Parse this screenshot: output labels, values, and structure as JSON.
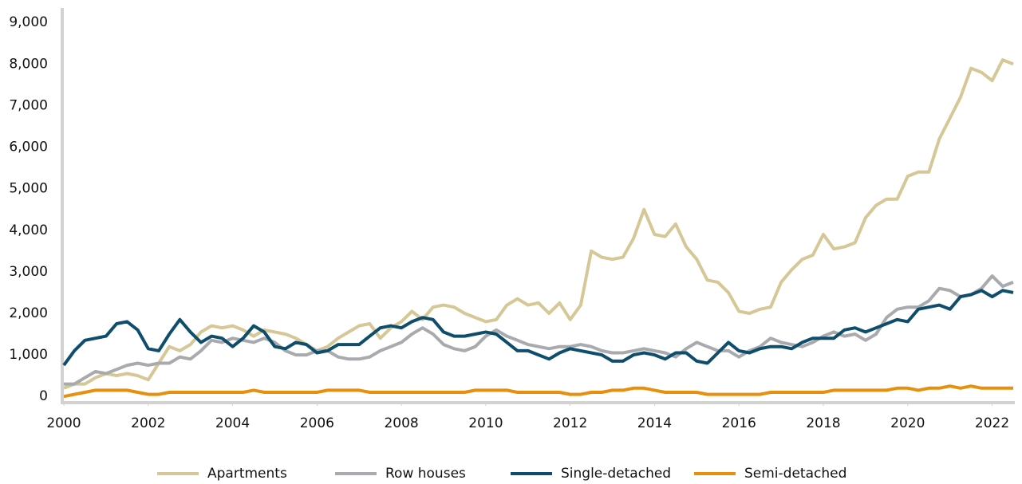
{
  "chart_data": {
    "type": "line",
    "x": [
      2000,
      2000.25,
      2000.5,
      2000.75,
      2001,
      2001.25,
      2001.5,
      2001.75,
      2002,
      2002.25,
      2002.5,
      2002.75,
      2003,
      2003.25,
      2003.5,
      2003.75,
      2004,
      2004.25,
      2004.5,
      2004.75,
      2005,
      2005.25,
      2005.5,
      2005.75,
      2006,
      2006.25,
      2006.5,
      2006.75,
      2007,
      2007.25,
      2007.5,
      2007.75,
      2008,
      2008.25,
      2008.5,
      2008.75,
      2009,
      2009.25,
      2009.5,
      2009.75,
      2010,
      2010.25,
      2010.5,
      2010.75,
      2011,
      2011.25,
      2011.5,
      2011.75,
      2012,
      2012.25,
      2012.5,
      2012.75,
      2013,
      2013.25,
      2013.5,
      2013.75,
      2014,
      2014.25,
      2014.5,
      2014.75,
      2015,
      2015.25,
      2015.5,
      2015.75,
      2016,
      2016.25,
      2016.5,
      2016.75,
      2017,
      2017.25,
      2017.5,
      2017.75,
      2018,
      2018.25,
      2018.5,
      2018.75,
      2019,
      2019.25,
      2019.5,
      2019.75,
      2020,
      2020.25,
      2020.5,
      2020.75,
      2021,
      2021.25,
      2021.5,
      2021.75,
      2022,
      2022.25,
      2022.5
    ],
    "series": [
      {
        "name": "Apartments",
        "color": "#d6c796",
        "values": [
          200,
          300,
          300,
          450,
          550,
          500,
          550,
          500,
          400,
          800,
          1200,
          1100,
          1250,
          1550,
          1700,
          1650,
          1700,
          1600,
          1450,
          1600,
          1550,
          1500,
          1400,
          1250,
          1100,
          1200,
          1400,
          1550,
          1700,
          1750,
          1400,
          1650,
          1800,
          2050,
          1850,
          2150,
          2200,
          2150,
          2000,
          1900,
          1800,
          1850,
          2200,
          2350,
          2200,
          2250,
          2000,
          2250,
          1850,
          2200,
          3500,
          3350,
          3300,
          3350,
          3800,
          4500,
          3900,
          3850,
          4150,
          3600,
          3300,
          2800,
          2750,
          2500,
          2050,
          2000,
          2100,
          2150,
          2750,
          3050,
          3300,
          3400,
          3900,
          3550,
          3600,
          3700,
          4300,
          4600,
          4750,
          4750,
          5300,
          5400,
          5400,
          6200,
          6700,
          7200,
          7900,
          7800,
          7600,
          8100,
          8000
        ]
      },
      {
        "name": "Row houses",
        "color": "#a9aaae",
        "values": [
          300,
          300,
          450,
          600,
          550,
          650,
          750,
          800,
          750,
          800,
          800,
          950,
          900,
          1100,
          1350,
          1300,
          1400,
          1350,
          1300,
          1400,
          1300,
          1100,
          1000,
          1000,
          1100,
          1100,
          950,
          900,
          900,
          950,
          1100,
          1200,
          1300,
          1500,
          1650,
          1500,
          1250,
          1150,
          1100,
          1200,
          1450,
          1600,
          1450,
          1350,
          1250,
          1200,
          1150,
          1200,
          1200,
          1250,
          1200,
          1100,
          1050,
          1050,
          1100,
          1150,
          1100,
          1050,
          950,
          1150,
          1300,
          1200,
          1100,
          1100,
          950,
          1100,
          1200,
          1400,
          1300,
          1250,
          1200,
          1300,
          1450,
          1550,
          1450,
          1500,
          1350,
          1500,
          1900,
          2100,
          2150,
          2150,
          2300,
          2600,
          2550,
          2400,
          2450,
          2600,
          2900,
          2650,
          2750
        ]
      },
      {
        "name": "Single-detached",
        "color": "#0e4d6b",
        "values": [
          750,
          1100,
          1350,
          1400,
          1450,
          1750,
          1800,
          1600,
          1150,
          1100,
          1500,
          1850,
          1550,
          1300,
          1450,
          1400,
          1200,
          1400,
          1700,
          1550,
          1200,
          1150,
          1300,
          1250,
          1050,
          1100,
          1250,
          1250,
          1250,
          1450,
          1650,
          1700,
          1650,
          1800,
          1900,
          1850,
          1550,
          1450,
          1450,
          1500,
          1550,
          1500,
          1300,
          1100,
          1100,
          1000,
          900,
          1050,
          1150,
          1100,
          1050,
          1000,
          850,
          850,
          1000,
          1050,
          1000,
          900,
          1050,
          1050,
          850,
          800,
          1050,
          1300,
          1100,
          1050,
          1150,
          1200,
          1200,
          1150,
          1300,
          1400,
          1400,
          1400,
          1600,
          1650,
          1550,
          1650,
          1750,
          1850,
          1800,
          2100,
          2150,
          2200,
          2100,
          2400,
          2450,
          2550,
          2400,
          2550,
          2500
        ]
      },
      {
        "name": "Semi-detached",
        "color": "#e8900e",
        "values": [
          0,
          50,
          100,
          150,
          150,
          150,
          150,
          100,
          50,
          50,
          100,
          100,
          100,
          100,
          100,
          100,
          100,
          100,
          150,
          100,
          100,
          100,
          100,
          100,
          100,
          150,
          150,
          150,
          150,
          100,
          100,
          100,
          100,
          100,
          100,
          100,
          100,
          100,
          100,
          150,
          150,
          150,
          150,
          100,
          100,
          100,
          100,
          100,
          50,
          50,
          100,
          100,
          150,
          150,
          200,
          200,
          150,
          100,
          100,
          100,
          100,
          50,
          50,
          50,
          50,
          50,
          50,
          100,
          100,
          100,
          100,
          100,
          100,
          150,
          150,
          150,
          150,
          150,
          150,
          200,
          200,
          150,
          200,
          200,
          250,
          200,
          250,
          200,
          200,
          200,
          200
        ]
      }
    ],
    "xlim": [
      2000,
      2022.5
    ],
    "xticks": [
      2000,
      2002,
      2004,
      2006,
      2008,
      2010,
      2012,
      2014,
      2016,
      2018,
      2020,
      2022
    ],
    "ylim": [
      -150,
      9350
    ],
    "yticks": [
      0,
      {
        "value": 1000,
        "label": "1,000"
      },
      {
        "value": 2000,
        "label": "2,000"
      },
      {
        "value": 3000,
        "label": "3,000"
      },
      {
        "value": 4000,
        "label": "4,000"
      },
      {
        "value": 5000,
        "label": "5,000"
      },
      {
        "value": 6000,
        "label": "6,000"
      },
      {
        "value": 7000,
        "label": "7,000"
      },
      {
        "value": 8000,
        "label": "8,000"
      },
      {
        "value": 9000,
        "label": "9,000"
      }
    ],
    "legend": "bottom"
  }
}
